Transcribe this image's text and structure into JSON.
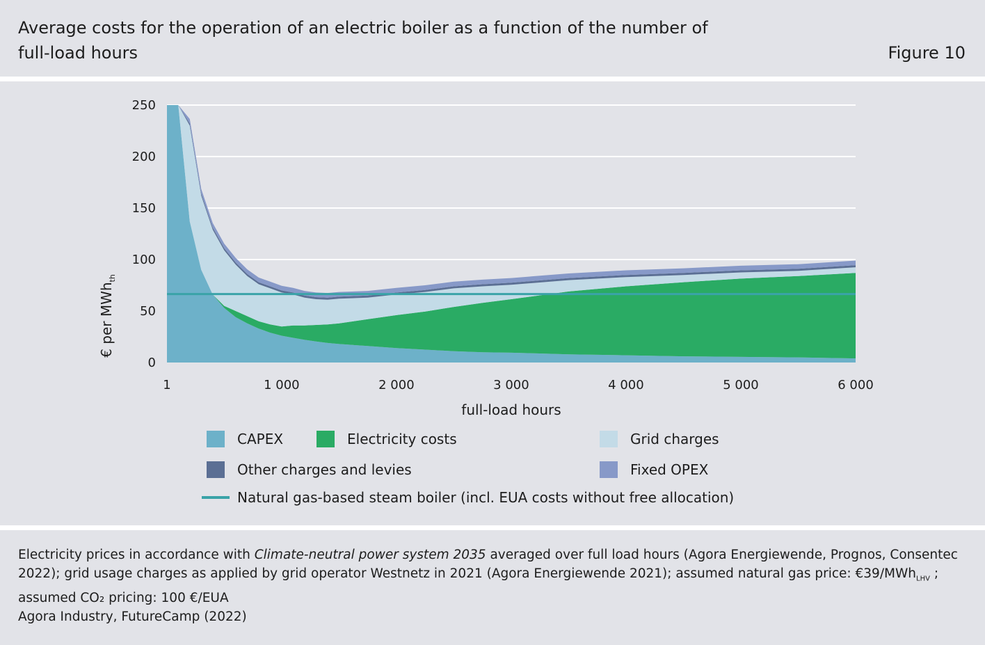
{
  "header": {
    "title": "Average costs for the operation of an electric boiler as a function of the number of full-load hours",
    "figure_label": "Figure 10"
  },
  "notes": {
    "prefix": "Electricity prices in accordance with ",
    "italic": "Climate-neutral power system 2035",
    "middle": " averaged over full load hours (Agora Energiewende, Prognos, Consentec 2022); grid usage charges as applied by grid operator Westnetz in 2021 (Agora Energiewende 2021); assumed natural gas price: €39/MWh",
    "sub": "LHV",
    "suffix": " ; assumed CO₂ pricing: 100 €/EUA",
    "source": "Agora Industry, FutureCamp (2022)"
  },
  "colors": {
    "capex": "#6db1c9",
    "electricity": "#2aab64",
    "grid": "#c3dbe7",
    "other": "#5b6f94",
    "opex": "#8799c8",
    "gas_line": "#3aa3a8",
    "grid_line": "#ffffff",
    "background": "#e2e3e8"
  },
  "chart_data": {
    "type": "area",
    "title": "",
    "xlabel": "full-load hours",
    "ylabel": "€ per MWh",
    "ylabel_sub": "th",
    "xlim": [
      1,
      6000
    ],
    "ylim": [
      0,
      250
    ],
    "x_ticks": [
      1,
      1000,
      2000,
      3000,
      4000,
      5000,
      6000
    ],
    "x_tick_labels": [
      "1",
      "1 000",
      "2 000",
      "3 000",
      "4 000",
      "5 000",
      "6 000"
    ],
    "y_ticks": [
      0,
      50,
      100,
      150,
      200,
      250
    ],
    "y_tick_labels": [
      "0",
      "50",
      "100",
      "150",
      "200",
      "250"
    ],
    "grid": true,
    "stacked": true,
    "x": [
      1,
      100,
      200,
      300,
      400,
      500,
      600,
      700,
      800,
      900,
      1000,
      1100,
      1200,
      1300,
      1400,
      1500,
      1750,
      2000,
      2250,
      2500,
      2750,
      3000,
      3500,
      4000,
      4500,
      5000,
      5500,
      6000
    ],
    "series": [
      {
        "name": "CAPEX",
        "key": "capex",
        "values": [
          250,
          250,
          137,
          90,
          66,
          53,
          44,
          38,
          33,
          29,
          26,
          24,
          22,
          20.5,
          19,
          18,
          16,
          14,
          12.5,
          11,
          10,
          9.5,
          8,
          7,
          6,
          5.5,
          5,
          4
        ]
      },
      {
        "name": "Electricity costs",
        "key": "electricity",
        "values": [
          0,
          0,
          0,
          0,
          0,
          2,
          6,
          7,
          7,
          8,
          9,
          12,
          14,
          16,
          18,
          20,
          26,
          32,
          37,
          43,
          48,
          52,
          61,
          67,
          72,
          76,
          79,
          83
        ]
      },
      {
        "name": "Grid charges",
        "key": "grid",
        "values": [
          0,
          0,
          93,
          72,
          63,
          54,
          45,
          39,
          36,
          35,
          33,
          30,
          27,
          25,
          24,
          24,
          21,
          20,
          19,
          18,
          16,
          14,
          11,
          9,
          7,
          6,
          5,
          5.5
        ]
      },
      {
        "name": "Other charges and levies",
        "key": "other",
        "values": [
          0,
          0,
          2,
          2,
          2,
          2,
          2,
          2,
          2,
          2,
          2,
          2,
          2,
          2,
          2,
          2,
          2,
          2,
          2,
          2,
          2,
          2,
          2,
          2,
          2,
          2,
          2,
          2
        ]
      },
      {
        "name": "Fixed OPEX",
        "key": "opex",
        "values": [
          0,
          0,
          4.5,
          4.5,
          4.5,
          4.5,
          4.5,
          4.5,
          4.5,
          4.5,
          4.5,
          4.5,
          4.5,
          4.5,
          4.5,
          4.5,
          4.5,
          4.5,
          4.5,
          4.5,
          4.5,
          4.5,
          4.5,
          4.5,
          4.5,
          4.5,
          4.5,
          4.5
        ]
      }
    ],
    "reference_line": {
      "name": "Natural gas-based steam boiler (incl. EUA costs without free allocation)",
      "key": "gas_line",
      "value": 66.5
    },
    "legend": [
      {
        "label": "CAPEX",
        "key": "capex",
        "kind": "box"
      },
      {
        "label": "Electricity costs",
        "key": "electricity",
        "kind": "box"
      },
      {
        "label": "Grid charges",
        "key": "grid",
        "kind": "box"
      },
      {
        "label": "Other charges and levies",
        "key": "other",
        "kind": "box"
      },
      {
        "label": "Fixed OPEX",
        "key": "opex",
        "kind": "box"
      },
      {
        "label": "Natural gas-based steam boiler (incl. EUA costs without free allocation)",
        "key": "gas_line",
        "kind": "line"
      }
    ],
    "legend_position": "bottom"
  }
}
